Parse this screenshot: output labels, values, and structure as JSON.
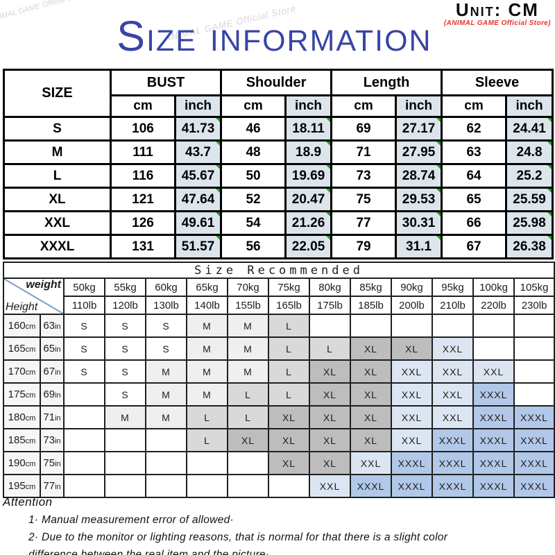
{
  "header": {
    "unit_label": "Unit: CM",
    "store_label": "(ANIMAL GAME Official Store)",
    "title": "Size information",
    "watermark": "ANIMAL GAME Official Store"
  },
  "size_table": {
    "corner_label": "SIZE",
    "groups": [
      "BUST",
      "Shoulder",
      "Length",
      "Sleeve"
    ],
    "unit_headers": [
      "cm",
      "inch"
    ],
    "rows": [
      {
        "size": "S",
        "values": [
          "106",
          "41.73",
          "46",
          "18.11",
          "69",
          "27.17",
          "62",
          "24.41"
        ]
      },
      {
        "size": "M",
        "values": [
          "111",
          "43.7",
          "48",
          "18.9",
          "71",
          "27.95",
          "63",
          "24.8"
        ]
      },
      {
        "size": "L",
        "values": [
          "116",
          "45.67",
          "50",
          "19.69",
          "73",
          "28.74",
          "64",
          "25.2"
        ]
      },
      {
        "size": "XL",
        "values": [
          "121",
          "47.64",
          "52",
          "20.47",
          "75",
          "29.53",
          "65",
          "25.59"
        ]
      },
      {
        "size": "XXL",
        "values": [
          "126",
          "49.61",
          "54",
          "21.26",
          "77",
          "30.31",
          "66",
          "25.98"
        ]
      },
      {
        "size": "XXXL",
        "values": [
          "131",
          "51.57",
          "56",
          "22.05",
          "79",
          "31.1",
          "67",
          "26.38"
        ]
      }
    ]
  },
  "recommend_table": {
    "title": "Size Recommended",
    "corner_top": "weight",
    "corner_bottom": "Height",
    "height_unit_cm": "cm",
    "height_unit_in": "in",
    "weights_kg": [
      "50kg",
      "55kg",
      "60kg",
      "65kg",
      "70kg",
      "75kg",
      "80kg",
      "85kg",
      "90kg",
      "95kg",
      "100kg",
      "105kg"
    ],
    "weights_lb": [
      "110lb",
      "120lb",
      "130lb",
      "140lb",
      "155lb",
      "165lb",
      "175lb",
      "185lb",
      "200lb",
      "210lb",
      "220lb",
      "230lb"
    ],
    "rows": [
      {
        "cm": "160",
        "in": "63",
        "cells": [
          "S",
          "S",
          "S",
          "M",
          "M",
          "L",
          "",
          "",
          "",
          "",
          "",
          ""
        ]
      },
      {
        "cm": "165",
        "in": "65",
        "cells": [
          "S",
          "S",
          "S",
          "M",
          "M",
          "L",
          "L",
          "XL",
          "XL",
          "XXL",
          "",
          ""
        ]
      },
      {
        "cm": "170",
        "in": "67",
        "cells": [
          "S",
          "S",
          "M",
          "M",
          "M",
          "L",
          "XL",
          "XL",
          "XXL",
          "XXL",
          "XXL",
          ""
        ]
      },
      {
        "cm": "175",
        "in": "69",
        "cells": [
          "",
          "S",
          "M",
          "M",
          "L",
          "L",
          "XL",
          "XL",
          "XXL",
          "XXL",
          "XXXL",
          ""
        ]
      },
      {
        "cm": "180",
        "in": "71",
        "cells": [
          "",
          "M",
          "M",
          "L",
          "L",
          "XL",
          "XL",
          "XL",
          "XXL",
          "XXL",
          "XXXL",
          "XXXL"
        ]
      },
      {
        "cm": "185",
        "in": "73",
        "cells": [
          "",
          "",
          "",
          "L",
          "XL",
          "XL",
          "XL",
          "XL",
          "XXL",
          "XXXL",
          "XXXL",
          "XXXL"
        ]
      },
      {
        "cm": "190",
        "in": "75",
        "cells": [
          "",
          "",
          "",
          "",
          "",
          "XL",
          "XL",
          "XXL",
          "XXXL",
          "XXXL",
          "XXXL",
          "XXXL"
        ]
      },
      {
        "cm": "195",
        "in": "77",
        "cells": [
          "",
          "",
          "",
          "",
          "",
          "",
          "XXL",
          "XXXL",
          "XXXL",
          "XXXL",
          "XXXL",
          "XXXL"
        ]
      }
    ],
    "cell_colors": {
      "S": "#ffffff",
      "M": "#efefef",
      "L": "#d9d9d9",
      "XL": "#bdbdbd",
      "XXL": "#dce6f2",
      "XXXL": "#b2c8e8"
    }
  },
  "attention": {
    "title": "Attention",
    "lines": [
      "1·  Manual measurement error of allowed·",
      "2·  Due to the monitor or lighting reasons, that is normal for that there is a slight color",
      "difference between the real item and the picture·"
    ]
  },
  "colors": {
    "title_blue": "#3845a5",
    "store_red": "#e8312f",
    "inch_bg": "#dce4ec",
    "marker_green": "#1ba11b",
    "diagonal_blue": "#7a9bc9"
  }
}
